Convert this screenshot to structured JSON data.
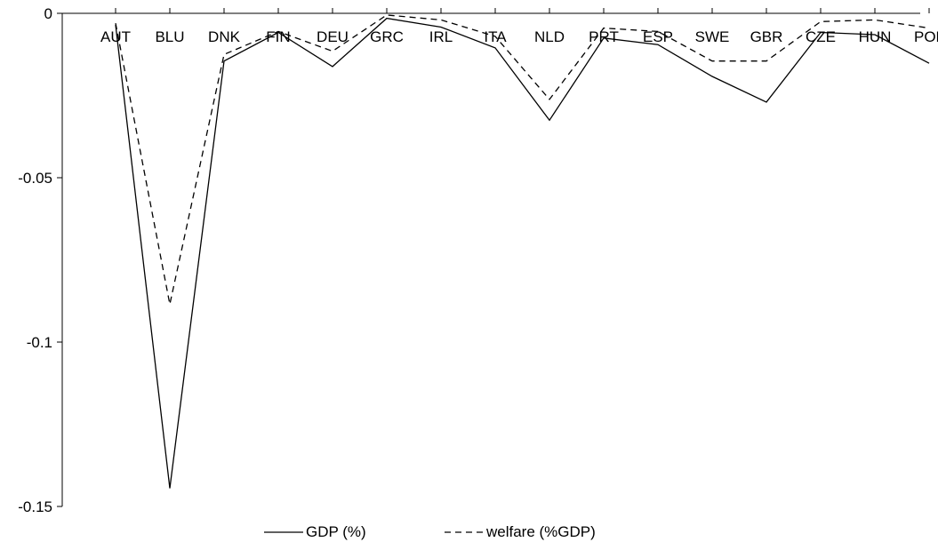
{
  "chart_data": {
    "type": "line",
    "categories": [
      "AUT",
      "BLU",
      "DNK",
      "FIN",
      "DEU",
      "GRC",
      "IRL",
      "ITA",
      "NLD",
      "PRT",
      "ESP",
      "SWE",
      "GBR",
      "CZE",
      "HUN",
      "POL"
    ],
    "series": [
      {
        "name": "GDP (%)",
        "dash": "solid",
        "values": [
          -0.0035,
          -0.1445,
          -0.0145,
          -0.0058,
          -0.0162,
          -0.0015,
          -0.0042,
          -0.0105,
          -0.0325,
          -0.0075,
          -0.0095,
          -0.0192,
          -0.027,
          -0.0058,
          -0.0065,
          -0.0152
        ]
      },
      {
        "name": "welfare (%GDP)",
        "dash": "dashed",
        "values": [
          -0.003,
          -0.0885,
          -0.0125,
          -0.0055,
          -0.0115,
          -0.0005,
          -0.002,
          -0.007,
          -0.0262,
          -0.0045,
          -0.0055,
          -0.0145,
          -0.0145,
          -0.0025,
          -0.002,
          -0.0045
        ]
      }
    ],
    "ylim": [
      -0.15,
      0
    ],
    "yticks": [
      0,
      -0.05,
      -0.1,
      -0.15
    ],
    "ytick_labels": [
      "0",
      "-0.05",
      "-0.1",
      "-0.15"
    ],
    "title": "",
    "xlabel": "",
    "ylabel": "",
    "legend_position": "bottom",
    "grid": false,
    "line_color": "#000000"
  }
}
